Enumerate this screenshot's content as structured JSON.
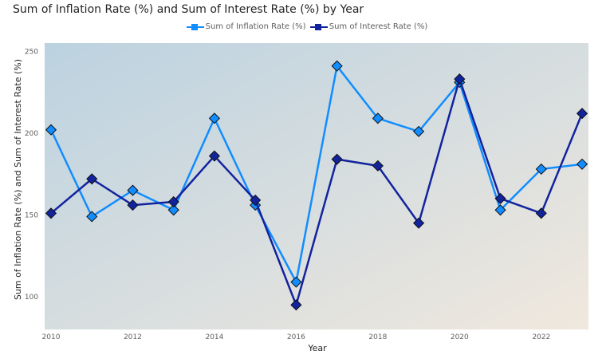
{
  "chart_data": {
    "type": "line",
    "title": "Sum of Inflation Rate (%) and Sum of Interest Rate (%) by Year",
    "xlabel": "Year",
    "ylabel": "Sum of Inflation Rate (%) and Sum of Interest Rate (%)",
    "x": [
      2010,
      2011,
      2012,
      2013,
      2014,
      2015,
      2016,
      2017,
      2018,
      2019,
      2020,
      2021,
      2022,
      2023
    ],
    "xticks": [
      "2010",
      "2012",
      "2014",
      "2016",
      "2018",
      "2020",
      "2022"
    ],
    "yticks": [
      "100",
      "150",
      "200",
      "250"
    ],
    "xlim": [
      2010,
      2023
    ],
    "ylim": [
      80,
      255
    ],
    "grid": false,
    "legend_position": "top-center",
    "series": [
      {
        "name": "Sum of Inflation Rate (%)",
        "color": "#118DFF",
        "values": [
          202,
          149,
          165,
          153,
          209,
          156,
          109,
          241,
          209,
          201,
          231,
          153,
          178,
          181
        ]
      },
      {
        "name": "Sum of Interest Rate (%)",
        "color": "#12239E",
        "values": [
          151,
          172,
          156,
          158,
          186,
          159,
          95,
          184,
          180,
          145,
          233,
          160,
          151,
          212
        ]
      }
    ],
    "background_colors": [
      "#bcd2e0",
      "#f0e8de"
    ]
  }
}
